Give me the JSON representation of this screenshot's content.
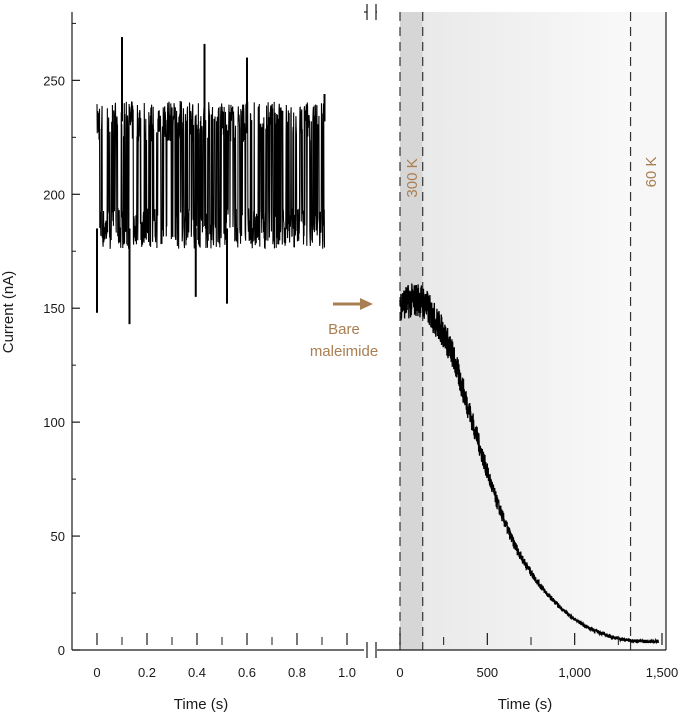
{
  "chart_data": [
    {
      "type": "line",
      "panel": "left",
      "xlabel": "Time (s)",
      "ylabel": "Current (nA)",
      "xlim": [
        -0.05,
        1.0
      ],
      "ylim": [
        0,
        280
      ],
      "x_ticks": [
        0,
        0.2,
        0.4,
        0.6,
        0.8,
        1.0
      ],
      "x_tick_labels": [
        "0",
        "0.2",
        "0.4",
        "0.6",
        "0.8",
        "1.0"
      ],
      "y_ticks": [
        0,
        50,
        100,
        150,
        200,
        250
      ],
      "y_tick_labels": [
        "0",
        "50",
        "100",
        "150",
        "200",
        "250"
      ],
      "x_minor_ticks": [
        0.1,
        0.3,
        0.5,
        0.7,
        0.9
      ],
      "y_minor_ticks": [
        25,
        75,
        125,
        175,
        225,
        275
      ],
      "series": [
        {
          "color": "#000000",
          "description_level": "telegraph noise switching between ~185 and ~232 nA",
          "x_range": [
            0,
            0.91
          ],
          "low_level": 185,
          "high_level": 232,
          "spikes": [
            {
              "x": 0.0,
              "y": 148
            },
            {
              "x": 0.1,
              "y": 269
            },
            {
              "x": 0.13,
              "y": 143
            },
            {
              "x": 0.395,
              "y": 155
            },
            {
              "x": 0.43,
              "y": 266
            },
            {
              "x": 0.52,
              "y": 152
            },
            {
              "x": 0.6,
              "y": 260
            },
            {
              "x": 0.91,
              "y": 244
            }
          ]
        }
      ]
    },
    {
      "type": "line",
      "panel": "right",
      "xlabel": "Time (s)",
      "xlim": [
        -10,
        1500
      ],
      "ylim": [
        0,
        280
      ],
      "x_ticks": [
        0,
        500,
        1000,
        1500
      ],
      "x_tick_labels": [
        "0",
        "500",
        "1,000",
        "1,500"
      ],
      "x_minor_ticks": [
        250,
        750,
        1250
      ],
      "series": [
        {
          "color": "#000000",
          "x": [
            0,
            50,
            100,
            130,
            160,
            200,
            250,
            300,
            350,
            400,
            450,
            500,
            550,
            600,
            650,
            700,
            750,
            800,
            850,
            900,
            950,
            1000,
            1050,
            1100,
            1150,
            1200,
            1250,
            1300,
            1350,
            1400,
            1450,
            1480
          ],
          "y": [
            152,
            153,
            154,
            153,
            150,
            145,
            139,
            130,
            117,
            104,
            91,
            78,
            66,
            56,
            47,
            40,
            34,
            28.5,
            24,
            20,
            16.5,
            13.5,
            11,
            9,
            7.5,
            6,
            5,
            4.3,
            4,
            3.8,
            3.8,
            3.8
          ]
        }
      ],
      "temperature_markers": [
        {
          "x": 130,
          "label": "300 K"
        },
        {
          "x": 1320,
          "label": "60 K"
        }
      ],
      "annotation": {
        "lines": [
          "Bare",
          "maleimide"
        ],
        "arrow_color": "#a97e52"
      }
    }
  ],
  "colors": {
    "annotation": "#a97e52",
    "shade_dark": "#d6d6d6",
    "shade_light": "#f7f7f7",
    "axis": "#1a1a1a"
  }
}
